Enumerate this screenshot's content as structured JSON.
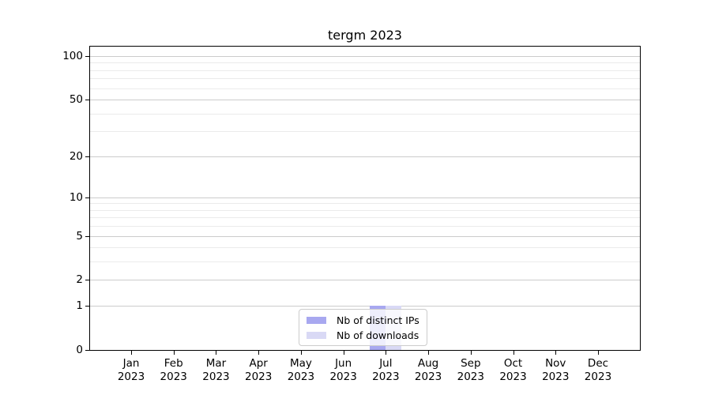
{
  "title": "tergm 2023",
  "colors": {
    "background": "#ffffff",
    "axis": "#000000",
    "text": "#000000",
    "grid_major": "#cccccc",
    "grid_minor": "#ebebeb",
    "legend_border": "#cccccc",
    "distinct_ips": "#a8a8f0",
    "downloads": "#d9d9f5"
  },
  "legend": {
    "items": [
      {
        "label": "Nb of distinct IPs",
        "color": "#a8a8f0"
      },
      {
        "label": "Nb of downloads",
        "color": "#d9d9f5"
      }
    ]
  },
  "y_axis": {
    "tick_labels": [
      "0",
      "1",
      "2",
      "5",
      "10",
      "20",
      "50",
      "100"
    ],
    "major_ticks": [
      0,
      1,
      2,
      5,
      10,
      20,
      50,
      100
    ],
    "minor_ticks": [
      3,
      4,
      6,
      7,
      8,
      9,
      30,
      40,
      60,
      70,
      80,
      90
    ]
  },
  "x_axis": {
    "tick_labels": [
      "Jan 2023",
      "Feb 2023",
      "Mar 2023",
      "Apr 2023",
      "May 2023",
      "Jun 2023",
      "Jul 2023",
      "Aug 2023",
      "Sep 2023",
      "Oct 2023",
      "Nov 2023",
      "Dec 2023"
    ]
  },
  "chart_data": {
    "type": "bar",
    "title": "tergm 2023",
    "categories": [
      "Jan 2023",
      "Feb 2023",
      "Mar 2023",
      "Apr 2023",
      "May 2023",
      "Jun 2023",
      "Jul 2023",
      "Aug 2023",
      "Sep 2023",
      "Oct 2023",
      "Nov 2023",
      "Dec 2023"
    ],
    "series": [
      {
        "name": "Nb of distinct IPs",
        "color": "#a8a8f0",
        "values": [
          0,
          0,
          0,
          0,
          0,
          0,
          1,
          0,
          0,
          0,
          0,
          0
        ]
      },
      {
        "name": "Nb of downloads",
        "color": "#d9d9f5",
        "values": [
          0,
          0,
          0,
          0,
          0,
          0,
          1,
          0,
          0,
          0,
          0,
          0
        ]
      }
    ],
    "xlabel": "",
    "ylabel": "",
    "yscale": "log1p",
    "yticks": [
      0,
      1,
      2,
      5,
      10,
      20,
      50,
      100
    ],
    "ylim": [
      0,
      118
    ],
    "grid": true,
    "legend_position": "lower center"
  }
}
